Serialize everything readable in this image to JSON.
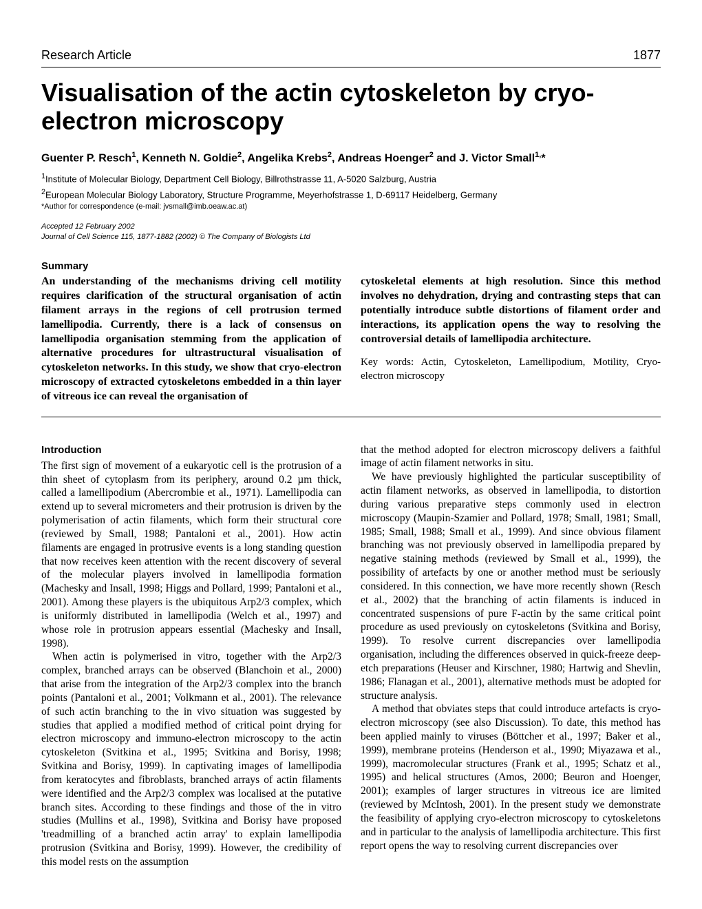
{
  "header": {
    "label": "Research Article",
    "page_number": "1877"
  },
  "title": "Visualisation of the actin cytoskeleton by cryo-electron microscopy",
  "authors_html": "Guenter P. Resch<sup>1</sup>, Kenneth N. Goldie<sup>2</sup>, Angelika Krebs<sup>2</sup>, Andreas Hoenger<sup>2</sup> and J. Victor Small<sup>1,</sup>*",
  "affiliations": {
    "a1": "1Institute of Molecular Biology, Department Cell Biology, Billrothstrasse 11, A-5020 Salzburg, Austria",
    "a2": "2European Molecular Biology Laboratory, Structure Programme, Meyerhofstrasse 1, D-69117 Heidelberg, Germany"
  },
  "correspondence": "*Author for correspondence (e-mail: jvsmall@imb.oeaw.ac.at)",
  "accepted": "Accepted 12 February 2002",
  "journal_info": "Journal of Cell Science 115, 1877-1882 (2002) © The Company of Biologists Ltd",
  "summary": {
    "heading": "Summary",
    "left": "An understanding of the mechanisms driving cell motility requires clarification of the structural organisation of actin filament arrays in the regions of cell protrusion termed lamellipodia. Currently, there is a lack of consensus on lamellipodia organisation stemming from the application of alternative procedures for ultrastructural visualisation of cytoskeleton networks. In this study, we show that cryo-electron microscopy of extracted cytoskeletons embedded in a thin layer of vitreous ice can reveal the organisation of",
    "right": "cytoskeletal elements at high resolution. Since this method involves no dehydration, drying and contrasting steps that can potentially introduce subtle distortions of filament order and interactions, its application opens the way to resolving the controversial details of lamellipodia architecture.",
    "keywords": "Key words: Actin, Cytoskeleton, Lamellipodium, Motility, Cryo-electron microscopy"
  },
  "introduction": {
    "heading": "Introduction",
    "left_p1": "The first sign of movement of a eukaryotic cell is the protrusion of a thin sheet of cytoplasm from its periphery, around 0.2 µm thick, called a lamellipodium (Abercrombie et al., 1971). Lamellipodia can extend up to several micrometers and their protrusion is driven by the polymerisation of actin filaments, which form their structural core (reviewed by Small, 1988; Pantaloni et al., 2001). How actin filaments are engaged in protrusive events is a long standing question that now receives keen attention with the recent discovery of several of the molecular players involved in lamellipodia formation (Machesky and Insall, 1998; Higgs and Pollard, 1999; Pantaloni et al., 2001). Among these players is the ubiquitous Arp2/3 complex, which is uniformly distributed in lamellipodia (Welch et al., 1997) and whose role in protrusion appears essential (Machesky and Insall, 1998).",
    "left_p2": "When actin is polymerised in vitro, together with the Arp2/3 complex, branched arrays can be observed (Blanchoin et al., 2000) that arise from the integration of the Arp2/3 complex into the branch points (Pantaloni et al., 2001; Volkmann et al., 2001). The relevance of such actin branching to the in vivo situation was suggested by studies that applied a modified method of critical point drying for electron microscopy and immuno-electron microscopy to the actin cytoskeleton (Svitkina et al., 1995; Svitkina and Borisy, 1998; Svitkina and Borisy, 1999). In captivating images of lamellipodia from keratocytes and fibroblasts, branched arrays of actin filaments were identified and the Arp2/3 complex was localised at the putative branch sites. According to these findings and those of the in vitro studies (Mullins et al., 1998), Svitkina and Borisy have proposed 'treadmilling of a branched actin array' to explain lamellipodia protrusion (Svitkina and Borisy, 1999). However, the credibility of this model rests on the assumption",
    "right_p1": "that the method adopted for electron microscopy delivers a faithful image of actin filament networks in situ.",
    "right_p2": "We have previously highlighted the particular susceptibility of actin filament networks, as observed in lamellipodia, to distortion during various preparative steps commonly used in electron microscopy (Maupin-Szamier and Pollard, 1978; Small, 1981; Small, 1985; Small, 1988; Small et al., 1999). And since obvious filament branching was not previously observed in lamellipodia prepared by negative staining methods (reviewed by Small et al., 1999), the possibility of artefacts by one or another method must be seriously considered. In this connection, we have more recently shown (Resch et al., 2002) that the branching of actin filaments is induced in concentrated suspensions of pure F-actin by the same critical point procedure as used previously on cytoskeletons (Svitkina and Borisy, 1999). To resolve current discrepancies over lamellipodia organisation, including the differences observed in quick-freeze deep-etch preparations (Heuser and Kirschner, 1980; Hartwig and Shevlin, 1986; Flanagan et al., 2001), alternative methods must be adopted for structure analysis.",
    "right_p3": "A method that obviates steps that could introduce artefacts is cryo-electron microscopy (see also Discussion). To date, this method has been applied mainly to viruses (Böttcher et al., 1997; Baker et al., 1999), membrane proteins (Henderson et al., 1990; Miyazawa et al., 1999), macromolecular structures (Frank et al., 1995; Schatz et al., 1995) and helical structures (Amos, 2000; Beuron and Hoenger, 2001); examples of larger structures in vitreous ice are limited (reviewed by McIntosh, 2001). In the present study we demonstrate the feasibility of applying cryo-electron microscopy to cytoskeletons and in particular to the analysis of lamellipodia architecture. This first report opens the way to resolving current discrepancies over"
  }
}
